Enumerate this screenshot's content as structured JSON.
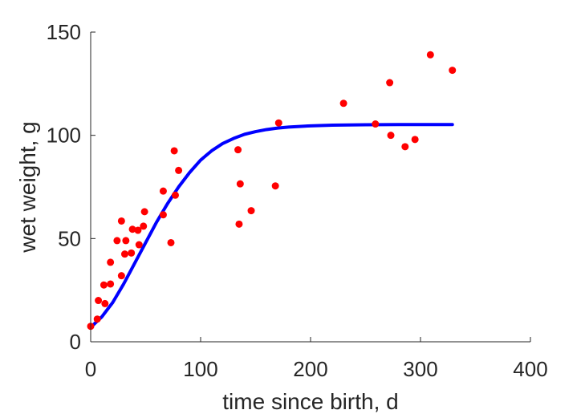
{
  "chart_data": {
    "type": "scatter",
    "xlabel": "time since birth, d",
    "ylabel": "wet weight, g",
    "xlim": [
      0,
      400
    ],
    "ylim": [
      0,
      150
    ],
    "xticks": [
      "0",
      "100",
      "200",
      "300",
      "400"
    ],
    "yticks": [
      "0",
      "50",
      "100",
      "150"
    ],
    "grid": false,
    "box": false,
    "series": [
      {
        "kind": "scatter",
        "color": "#ff0000",
        "points": [
          [
            0,
            7.5
          ],
          [
            6,
            11
          ],
          [
            7,
            20
          ],
          [
            12,
            27.5
          ],
          [
            13,
            18.5
          ],
          [
            18,
            38.5
          ],
          [
            18,
            28
          ],
          [
            24,
            49
          ],
          [
            28,
            58.5
          ],
          [
            28,
            32
          ],
          [
            31,
            42.5
          ],
          [
            32,
            49
          ],
          [
            37,
            43
          ],
          [
            38,
            54.5
          ],
          [
            43,
            54
          ],
          [
            44,
            47
          ],
          [
            48,
            56
          ],
          [
            49,
            63
          ],
          [
            66,
            61.5
          ],
          [
            66,
            73
          ],
          [
            73,
            48
          ],
          [
            76,
            92.5
          ],
          [
            77,
            71
          ],
          [
            80,
            83
          ],
          [
            134,
            93
          ],
          [
            135,
            57
          ],
          [
            136,
            76.5
          ],
          [
            146,
            63.5
          ],
          [
            168,
            75.5
          ],
          [
            171,
            106
          ],
          [
            230,
            115.5
          ],
          [
            259,
            105.5
          ],
          [
            272,
            125.5
          ],
          [
            273,
            100
          ],
          [
            286,
            94.5
          ],
          [
            295,
            98
          ],
          [
            309,
            139
          ],
          [
            329,
            131.5
          ]
        ]
      },
      {
        "kind": "line",
        "color": "#0000ff",
        "points": [
          [
            0,
            7
          ],
          [
            10,
            12
          ],
          [
            20,
            19
          ],
          [
            30,
            28
          ],
          [
            40,
            38
          ],
          [
            50,
            48
          ],
          [
            60,
            58
          ],
          [
            70,
            67
          ],
          [
            80,
            75
          ],
          [
            90,
            82
          ],
          [
            100,
            88
          ],
          [
            110,
            92.5
          ],
          [
            120,
            96
          ],
          [
            130,
            98.5
          ],
          [
            140,
            100.5
          ],
          [
            150,
            101.8
          ],
          [
            160,
            102.8
          ],
          [
            170,
            103.5
          ],
          [
            180,
            104
          ],
          [
            200,
            104.6
          ],
          [
            220,
            104.9
          ],
          [
            250,
            105.1
          ],
          [
            280,
            105.2
          ],
          [
            300,
            105.2
          ],
          [
            329,
            105.2
          ]
        ]
      }
    ]
  }
}
